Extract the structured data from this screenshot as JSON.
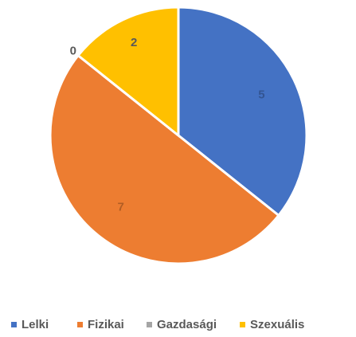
{
  "chart_data": {
    "type": "pie",
    "categories": [
      "Lelki",
      "Fizikai",
      "Gazdasági",
      "Szexuális"
    ],
    "values": [
      5,
      7,
      0,
      2
    ],
    "colors": [
      "#4472c4",
      "#ed7d31",
      "#a5a5a5",
      "#ffc000"
    ],
    "legend": "bottom"
  }
}
